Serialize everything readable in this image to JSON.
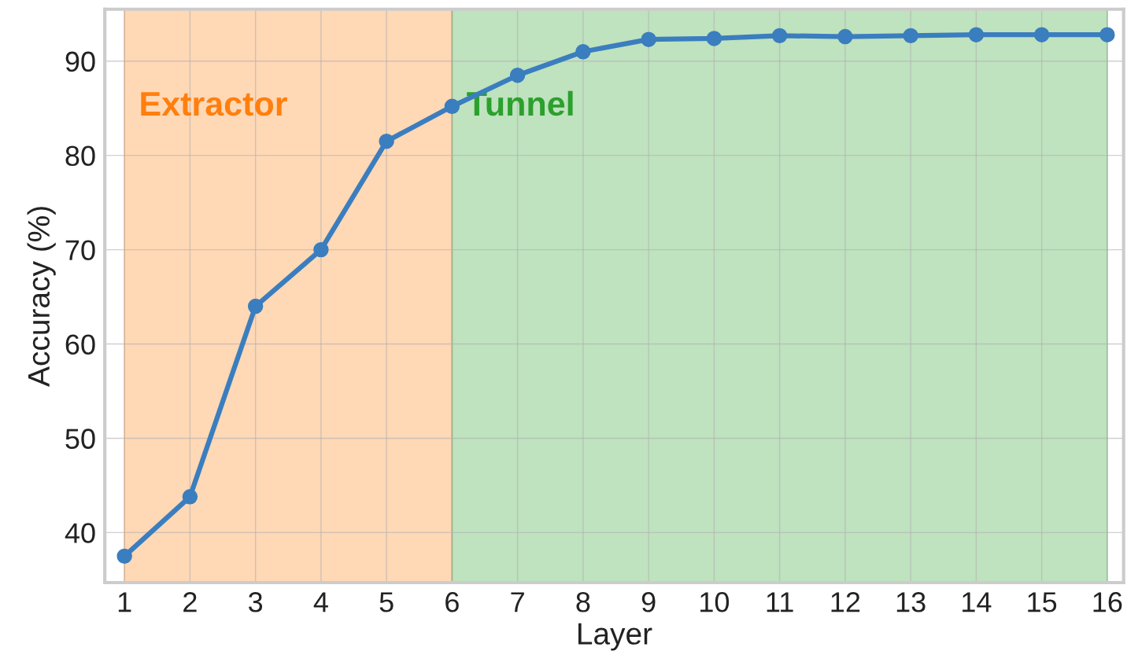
{
  "chart_data": {
    "type": "line",
    "xlabel": "Layer",
    "ylabel": "Accuracy (%)",
    "x": [
      1,
      2,
      3,
      4,
      5,
      6,
      7,
      8,
      9,
      10,
      11,
      12,
      13,
      14,
      15,
      16
    ],
    "series": [
      {
        "color": "#3a7ebf",
        "values": [
          37.5,
          43.8,
          64.0,
          70.0,
          81.5,
          85.2,
          88.5,
          91.0,
          92.3,
          92.4,
          92.7,
          92.6,
          92.7,
          92.8,
          92.8,
          92.8
        ]
      }
    ],
    "xlim": [
      0.7,
      16.25
    ],
    "ylim": [
      34.7,
      95.5
    ],
    "xticks": [
      1,
      2,
      3,
      4,
      5,
      6,
      7,
      8,
      9,
      10,
      11,
      12,
      13,
      14,
      15,
      16
    ],
    "yticks": [
      40,
      50,
      60,
      70,
      80,
      90
    ],
    "bands": [
      {
        "axis": "x",
        "from": 1,
        "to": 6,
        "label": "Extractor",
        "color": "#ff7f0e"
      },
      {
        "axis": "x",
        "from": 6,
        "to": 16,
        "label": "Tunnel",
        "color": "#2ca02c"
      }
    ],
    "grid": true,
    "marker": "circle",
    "line_style": "solid"
  }
}
